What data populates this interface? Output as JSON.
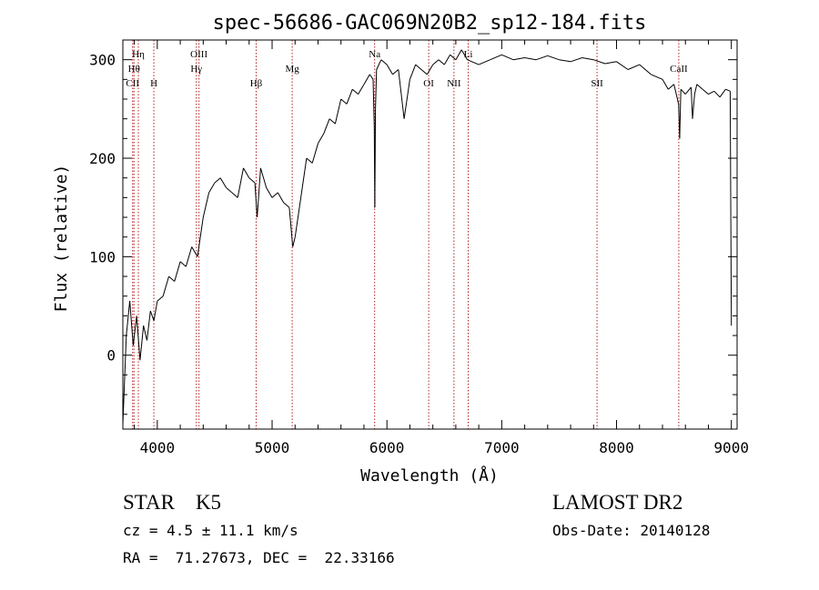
{
  "chart_data": {
    "type": "line",
    "title": "spec-56686-GAC069N20B2_sp12-184.fits",
    "xlabel": "Wavelength (Å)",
    "ylabel": "Flux (relative)",
    "xlim": [
      3700,
      9050
    ],
    "ylim": [
      -75,
      320
    ],
    "xticks": [
      4000,
      5000,
      6000,
      7000,
      8000,
      9000
    ],
    "yticks": [
      0,
      100,
      200,
      300
    ],
    "grid": false,
    "line_color": "#000000",
    "marker_color": "#b22222",
    "series": [
      {
        "x": [
          3700,
          3730,
          3760,
          3790,
          3820,
          3850,
          3880,
          3910,
          3940,
          3970,
          4000,
          4050,
          4100,
          4150,
          4200,
          4250,
          4300,
          4350,
          4400,
          4450,
          4500,
          4550,
          4600,
          4650,
          4700,
          4750,
          4800,
          4850,
          4870,
          4900,
          4950,
          5000,
          5050,
          5100,
          5150,
          5180,
          5200,
          5250,
          5300,
          5350,
          5400,
          5450,
          5500,
          5550,
          5600,
          5650,
          5700,
          5750,
          5800,
          5850,
          5880,
          5890,
          5895,
          5900,
          5910,
          5950,
          6000,
          6050,
          6100,
          6150,
          6200,
          6250,
          6300,
          6350,
          6400,
          6450,
          6500,
          6550,
          6600,
          6650,
          6700,
          6800,
          6900,
          7000,
          7100,
          7200,
          7300,
          7400,
          7500,
          7600,
          7700,
          7800,
          7900,
          8000,
          8100,
          8200,
          8300,
          8400,
          8450,
          8500,
          8540,
          8550,
          8560,
          8600,
          8650,
          8662,
          8680,
          8700,
          8750,
          8800,
          8850,
          8900,
          8950,
          8990,
          9000
        ],
        "values": [
          -70,
          20,
          55,
          10,
          40,
          -5,
          30,
          15,
          45,
          35,
          55,
          60,
          80,
          75,
          95,
          90,
          110,
          100,
          140,
          165,
          175,
          180,
          170,
          165,
          160,
          190,
          180,
          175,
          140,
          190,
          170,
          160,
          165,
          155,
          150,
          110,
          120,
          160,
          200,
          195,
          215,
          225,
          240,
          235,
          260,
          255,
          270,
          265,
          275,
          285,
          280,
          230,
          150,
          250,
          290,
          300,
          295,
          285,
          290,
          240,
          280,
          295,
          290,
          285,
          295,
          300,
          295,
          305,
          300,
          310,
          300,
          295,
          300,
          305,
          300,
          302,
          300,
          304,
          300,
          298,
          302,
          300,
          296,
          298,
          290,
          295,
          285,
          280,
          270,
          275,
          255,
          220,
          270,
          265,
          272,
          240,
          265,
          275,
          270,
          265,
          268,
          262,
          270,
          268,
          30
        ]
      }
    ],
    "line_labels": [
      {
        "text": "CII",
        "x": 3785,
        "row": 3
      },
      {
        "text": "Hθ",
        "x": 3797,
        "row": 2
      },
      {
        "text": "Hη",
        "x": 3835,
        "row": 1
      },
      {
        "text": "H",
        "x": 3970,
        "row": 3
      },
      {
        "text": "OIII",
        "x": 4363,
        "row": 1
      },
      {
        "text": "Hγ",
        "x": 4340,
        "row": 2
      },
      {
        "text": "Hβ",
        "x": 4861,
        "row": 3
      },
      {
        "text": "Mg",
        "x": 5175,
        "row": 2
      },
      {
        "text": "Na",
        "x": 5893,
        "row": 1
      },
      {
        "text": "OI",
        "x": 6364,
        "row": 3
      },
      {
        "text": "NII",
        "x": 6584,
        "row": 3
      },
      {
        "text": "Li",
        "x": 6708,
        "row": 1
      },
      {
        "text": "SII",
        "x": 7830,
        "row": 3
      },
      {
        "text": "CaII",
        "x": 8542,
        "row": 2
      }
    ]
  },
  "info": {
    "class_line": "STAR    K5",
    "survey": "LAMOST DR2",
    "cz": "cz = 4.5 ± 11.1 km/s",
    "obs_date": "Obs-Date: 20140128",
    "radec": "RA =  71.27673, DEC =  22.33166"
  }
}
